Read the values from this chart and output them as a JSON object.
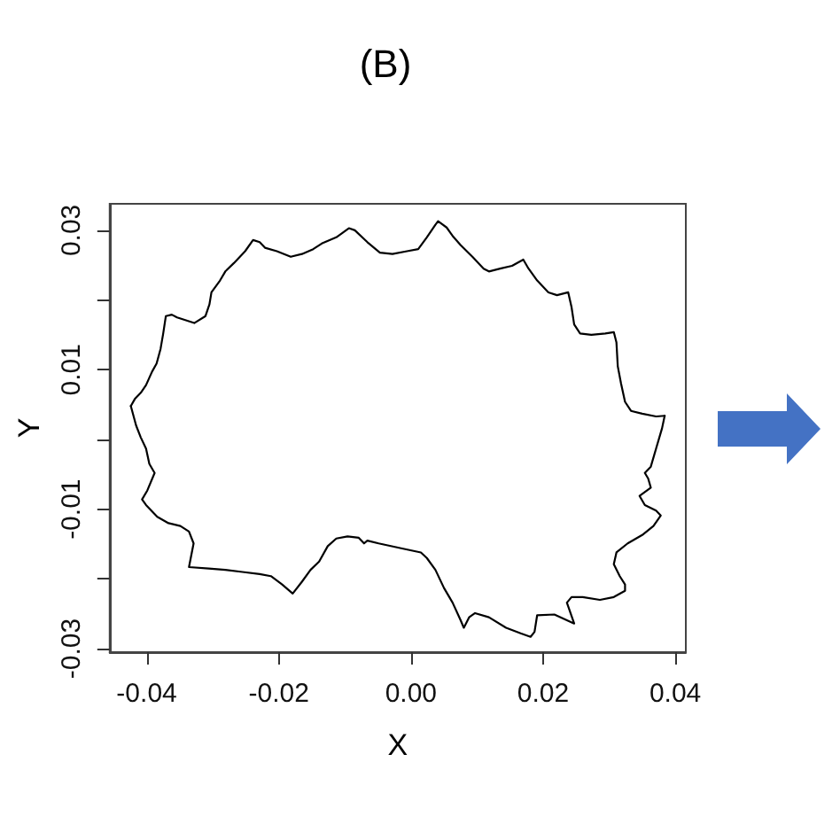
{
  "chart_data": {
    "type": "line",
    "title": "(B)",
    "xlabel": "X",
    "ylabel": "Y",
    "series": [
      {
        "color": "#000000",
        "x": [
          -0.0424,
          -0.0418,
          -0.0409,
          -0.0401,
          -0.0392,
          -0.0385,
          -0.0379,
          -0.0375,
          -0.0371,
          -0.0362,
          -0.0354,
          -0.0328,
          -0.0311,
          -0.0305,
          -0.0302,
          -0.0289,
          -0.0281,
          -0.0268,
          -0.0251,
          -0.0239,
          -0.0229,
          -0.0221,
          -0.0203,
          -0.0182,
          -0.0165,
          -0.0148,
          -0.0135,
          -0.0113,
          -0.0094,
          -0.0085,
          -0.0066,
          -0.0047,
          -0.0028,
          -0.0006,
          0.0011,
          0.0024,
          0.0037,
          0.0041,
          0.0054,
          0.0063,
          0.0075,
          0.0093,
          0.011,
          0.0118,
          0.0135,
          0.0153,
          0.017,
          0.0178,
          0.0191,
          0.0208,
          0.0221,
          0.0238,
          0.0243,
          0.0247,
          0.0256,
          0.0273,
          0.0294,
          0.0307,
          0.0311,
          0.0313,
          0.0318,
          0.0324,
          0.0333,
          0.035,
          0.0371,
          0.0384
        ],
        "values": [
          0.0048,
          0.0058,
          0.0067,
          0.0078,
          0.0097,
          0.0109,
          0.013,
          0.0152,
          0.0177,
          0.0179,
          0.0175,
          0.0167,
          0.0177,
          0.0194,
          0.0211,
          0.0228,
          0.0241,
          0.0253,
          0.027,
          0.0286,
          0.0283,
          0.0275,
          0.027,
          0.0262,
          0.0266,
          0.0273,
          0.0281,
          0.029,
          0.0303,
          0.03,
          0.0283,
          0.0268,
          0.0266,
          0.027,
          0.0273,
          0.029,
          0.0308,
          0.0313,
          0.0304,
          0.0292,
          0.0279,
          0.0262,
          0.0245,
          0.0241,
          0.0245,
          0.0249,
          0.0258,
          0.0245,
          0.0228,
          0.0211,
          0.0207,
          0.0211,
          0.019,
          0.0165,
          0.0152,
          0.015,
          0.0152,
          0.0154,
          0.0139,
          0.0105,
          0.008,
          0.0054,
          0.0041,
          0.0037,
          0.0033,
          0.0034
        ]
      },
      {
        "color": "#000000",
        "x": [
          0.0384,
          0.038,
          0.0371,
          0.0363,
          0.0354,
          0.0359,
          0.0363,
          0.0346,
          0.0354,
          0.0371,
          0.0378,
          0.0367,
          0.035,
          0.0328,
          0.0311,
          0.0307,
          0.0316,
          0.0324,
          0.0324,
          0.0307,
          0.0286,
          0.026,
          0.0243,
          0.0236,
          0.0247,
          0.0217,
          0.0191,
          0.0187,
          0.0181,
          0.0166,
          0.0144,
          0.0118,
          0.0097,
          0.0088,
          0.008,
          0.0075,
          0.0063,
          0.005,
          0.0037,
          0.0024,
          0.0015,
          -0.0015,
          -0.0049,
          -0.0066,
          -0.0071,
          -0.0079,
          -0.0096,
          -0.0113,
          -0.0126,
          -0.0139,
          -0.0152,
          -0.0165,
          -0.0179,
          -0.0195,
          -0.0212,
          -0.0229,
          -0.0255,
          -0.0281,
          -0.0306,
          -0.0336,
          -0.0329,
          -0.0336,
          -0.0349,
          -0.0367,
          -0.0384,
          -0.0401,
          -0.0407,
          -0.0399,
          -0.0388,
          -0.0396,
          -0.0401,
          -0.0409,
          -0.0416,
          -0.0424
        ],
        "values": [
          0.0034,
          0.0016,
          -0.0013,
          -0.0039,
          -0.0048,
          -0.0056,
          -0.0069,
          -0.0081,
          -0.0094,
          -0.0102,
          -0.0109,
          -0.0124,
          -0.0137,
          -0.0149,
          -0.0162,
          -0.0179,
          -0.0196,
          -0.0208,
          -0.0217,
          -0.0226,
          -0.023,
          -0.0226,
          -0.0226,
          -0.0234,
          -0.0264,
          -0.0251,
          -0.0252,
          -0.0276,
          -0.0283,
          -0.0278,
          -0.027,
          -0.0255,
          -0.0249,
          -0.0255,
          -0.027,
          -0.0259,
          -0.0234,
          -0.0213,
          -0.0187,
          -0.017,
          -0.0162,
          -0.0156,
          -0.0149,
          -0.0145,
          -0.0149,
          -0.0141,
          -0.0139,
          -0.0142,
          -0.0153,
          -0.0175,
          -0.0187,
          -0.0204,
          -0.0221,
          -0.0208,
          -0.0196,
          -0.0193,
          -0.019,
          -0.0187,
          -0.0185,
          -0.0183,
          -0.0149,
          -0.0132,
          -0.0124,
          -0.012,
          -0.0111,
          -0.0094,
          -0.0086,
          -0.0073,
          -0.0048,
          -0.0035,
          -0.0013,
          0.0003,
          0.002,
          0.0048
        ]
      }
    ],
    "xlim": [
      -0.0456,
      0.0416
    ],
    "ylim": [
      -0.0305,
      0.0338
    ],
    "xticks": [
      -0.04,
      -0.02,
      {
        "value": 0,
        "label": "0.00"
      },
      0.02,
      0.04
    ],
    "yticks": [
      0.03,
      {
        "value": 0.02,
        "label": null
      },
      0.01,
      {
        "value": 0,
        "label": null
      },
      -0.01,
      {
        "value": -0.02,
        "label": null
      },
      -0.03
    ],
    "marker": "none",
    "line_style": "solid"
  }
}
